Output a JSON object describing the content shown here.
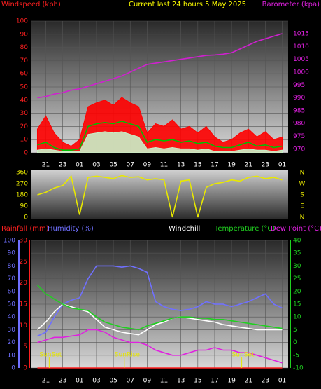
{
  "chart_data": [
    {
      "type": "line",
      "title": "Current last 24 hours 5 May 2025",
      "y_label": "Windspeed (kph)",
      "y2_label": "Barometer (kpa)",
      "x": [
        20,
        21,
        22,
        23,
        24,
        25,
        26,
        27,
        28,
        29,
        30,
        31,
        32,
        33,
        34,
        35,
        36,
        37,
        38,
        39,
        40,
        41,
        42,
        43,
        44,
        45,
        46,
        47,
        48,
        49
      ],
      "xlim": [
        19.3,
        49.7
      ],
      "xticks": [
        {
          "value": 21,
          "label": "21"
        },
        {
          "value": 23,
          "label": "23"
        },
        {
          "value": 25,
          "label": "01"
        },
        {
          "value": 27,
          "label": "03"
        },
        {
          "value": 29,
          "label": "05"
        },
        {
          "value": 31,
          "label": "07"
        },
        {
          "value": 33,
          "label": "09"
        },
        {
          "value": 35,
          "label": "11"
        },
        {
          "value": 37,
          "label": "13"
        },
        {
          "value": 39,
          "label": "15"
        },
        {
          "value": 41,
          "label": "17"
        },
        {
          "value": 43,
          "label": "19"
        },
        {
          "value": 45,
          "label": "21"
        },
        {
          "value": 47,
          "label": "23"
        },
        {
          "value": 49,
          "label": "01"
        }
      ],
      "ylim": [
        0,
        100
      ],
      "yticks": [
        0,
        10,
        20,
        30,
        40,
        50,
        60,
        70,
        80,
        90,
        100
      ],
      "y2lim": [
        968.6,
        1019.9
      ],
      "y2ticks": [
        970,
        975,
        980,
        985,
        990,
        995,
        1000,
        1005,
        1010,
        1015
      ],
      "grid": true,
      "series": [
        {
          "color": "#ff0000",
          "style": "area",
          "values": [
            18,
            28,
            15,
            8,
            5,
            10,
            35,
            38,
            40,
            36,
            42,
            38,
            35,
            15,
            22,
            20,
            25,
            18,
            20,
            15,
            20,
            12,
            8,
            10,
            15,
            18,
            12,
            16,
            10,
            12
          ]
        },
        {
          "color": "#c8f0c8",
          "style": "area",
          "values": [
            2,
            3,
            2,
            1,
            1,
            1,
            14,
            15,
            16,
            15,
            16,
            14,
            12,
            3,
            4,
            3,
            4,
            3,
            3,
            2,
            3,
            1,
            1,
            1,
            2,
            3,
            2,
            2,
            1,
            2
          ]
        },
        {
          "color": "#00c000",
          "style": "line",
          "values": [
            6,
            8,
            4,
            2,
            2,
            3,
            20,
            22,
            23,
            22,
            24,
            22,
            20,
            8,
            10,
            9,
            10,
            8,
            9,
            7,
            8,
            5,
            4,
            4,
            6,
            8,
            5,
            6,
            4,
            5
          ]
        },
        {
          "color": "#d020d0",
          "style": "line",
          "axis": "y2",
          "values": [
            990,
            990.5,
            991.5,
            992,
            993,
            993.5,
            994.5,
            995.5,
            996.5,
            997.5,
            998.5,
            1000,
            1001.5,
            1003,
            1003.5,
            1004,
            1004.5,
            1005,
            1005.5,
            1006,
            1006.5,
            1006.7,
            1007,
            1007.5,
            1009,
            1010.5,
            1012,
            1013,
            1014,
            1015
          ]
        }
      ]
    },
    {
      "type": "line",
      "x": [
        20,
        21,
        22,
        23,
        24,
        25,
        26,
        27,
        28,
        29,
        30,
        31,
        32,
        33,
        34,
        35,
        36,
        37,
        38,
        39,
        40,
        41,
        42,
        43,
        44,
        45,
        46,
        47,
        48,
        49
      ],
      "xlim": [
        19.3,
        49.7
      ],
      "ylim": [
        0,
        360
      ],
      "yticks": [
        0,
        90,
        180,
        270,
        360
      ],
      "y2lim": [
        0,
        360
      ],
      "y2ticks": [
        {
          "value": 0,
          "label": "N"
        },
        {
          "value": 90,
          "label": "E"
        },
        {
          "value": 180,
          "label": "S"
        },
        {
          "value": 270,
          "label": "W"
        },
        {
          "value": 360,
          "label": "N"
        }
      ],
      "series": [
        {
          "color": "#e8e800",
          "style": "line",
          "values": [
            180,
            200,
            235,
            255,
            330,
            20,
            320,
            330,
            320,
            310,
            335,
            320,
            325,
            300,
            310,
            300,
            0,
            290,
            300,
            0,
            240,
            270,
            280,
            300,
            290,
            320,
            330,
            310,
            320,
            300
          ]
        }
      ]
    },
    {
      "type": "line",
      "x": [
        20,
        21,
        22,
        23,
        24,
        25,
        26,
        27,
        28,
        29,
        30,
        31,
        32,
        33,
        34,
        35,
        36,
        37,
        38,
        39,
        40,
        41,
        42,
        43,
        44,
        45,
        46,
        47,
        48,
        49
      ],
      "xlim": [
        19.3,
        49.7
      ],
      "xticks": [
        {
          "value": 21,
          "label": "21"
        },
        {
          "value": 23,
          "label": "23"
        },
        {
          "value": 25,
          "label": "01"
        },
        {
          "value": 27,
          "label": "03"
        },
        {
          "value": 29,
          "label": "05"
        },
        {
          "value": 31,
          "label": "07"
        },
        {
          "value": 33,
          "label": "09"
        },
        {
          "value": 35,
          "label": "11"
        },
        {
          "value": 37,
          "label": "13"
        },
        {
          "value": 39,
          "label": "15"
        },
        {
          "value": 41,
          "label": "17"
        },
        {
          "value": 43,
          "label": "19"
        },
        {
          "value": 45,
          "label": "21"
        },
        {
          "value": 47,
          "label": "23"
        },
        {
          "value": 49,
          "label": "01"
        }
      ],
      "ylim": [
        0,
        100
      ],
      "yticks": [
        0,
        10,
        20,
        30,
        40,
        50,
        60,
        70,
        80,
        90,
        100
      ],
      "y2lim": [
        -10,
        40
      ],
      "y2ticks": [
        -10,
        -5,
        0,
        5,
        10,
        15,
        20,
        25,
        30,
        35,
        40
      ],
      "y3lim": [
        0,
        30
      ],
      "y3ticks": [
        0,
        5,
        10,
        15,
        20,
        25,
        30
      ],
      "grid": true,
      "annotations": [
        {
          "text": "SunSet",
          "x": 21.4
        },
        {
          "text": "SunRise",
          "x": 30.3
        },
        {
          "text": "SunSet",
          "x": 44.2
        }
      ],
      "series": [
        {
          "name": "Rainfall (mm)",
          "color": "#ff2020",
          "axis": "y3",
          "values": [
            0,
            0,
            0,
            0,
            0,
            0,
            0,
            0,
            0,
            0,
            0,
            0,
            0,
            0,
            0,
            0,
            0,
            0,
            0,
            0,
            0,
            0,
            0,
            0,
            0,
            0,
            0,
            0,
            0,
            0
          ]
        },
        {
          "name": "Humidity (%)",
          "color": "#7070ff",
          "values": [
            25,
            28,
            40,
            50,
            53,
            55,
            70,
            80,
            80,
            80,
            79,
            80,
            78,
            75,
            52,
            48,
            46,
            45,
            46,
            48,
            52,
            50,
            50,
            48,
            50,
            52,
            55,
            58,
            50,
            47
          ]
        },
        {
          "name": "Windchill",
          "color": "#ffffff",
          "axis": "y2",
          "values": [
            5,
            8,
            12,
            15,
            14,
            13,
            12,
            9,
            6,
            5,
            4,
            3.5,
            3,
            5,
            7,
            8,
            9.5,
            10,
            9.5,
            9,
            8.5,
            8,
            7,
            6.5,
            6,
            5.5,
            5,
            5,
            5,
            5
          ]
        },
        {
          "name": "Temperature (°C)",
          "color": "#20d020",
          "axis": "y2",
          "values": [
            22.5,
            19,
            17,
            15,
            13.5,
            13,
            12.5,
            10,
            8,
            7,
            6,
            5.5,
            5,
            6.5,
            7.5,
            8.5,
            9.5,
            10,
            10,
            9.5,
            9.5,
            9,
            9,
            8.5,
            8,
            7.5,
            7,
            6.5,
            6,
            5.5
          ]
        },
        {
          "name": "Dew Point (°C)",
          "color": "#e020e0",
          "axis": "y2",
          "values": [
            0,
            1,
            2,
            2,
            2.5,
            3,
            5,
            5,
            4,
            2,
            1,
            0,
            0,
            -1,
            -3,
            -4,
            -5,
            -5,
            -4,
            -3,
            -3,
            -2,
            -3,
            -3,
            -4,
            -4,
            -5,
            -6,
            -7,
            -8
          ]
        }
      ]
    }
  ]
}
